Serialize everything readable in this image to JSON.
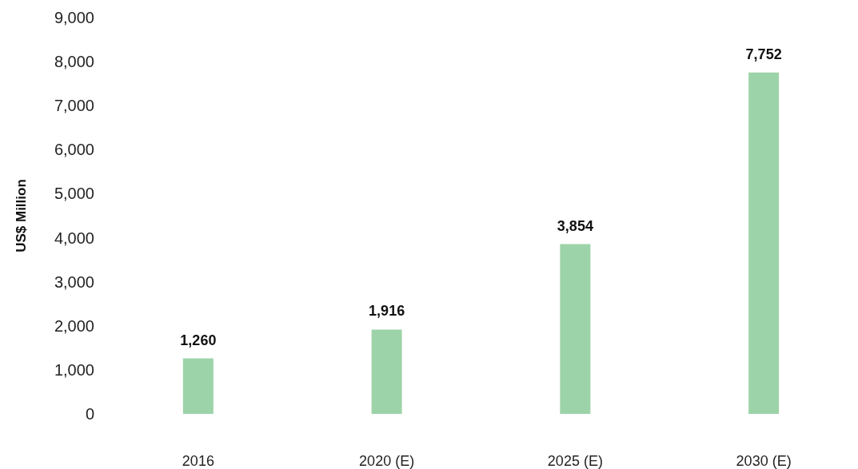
{
  "chart_data": {
    "type": "bar",
    "ylabel": "US$ Million",
    "categories": [
      "2016",
      "2020 (E)",
      "2025 (E)",
      "2030 (E)"
    ],
    "values": [
      1260,
      1916,
      3854,
      7752
    ],
    "value_labels": [
      "1,260",
      "1,916",
      "3,854",
      "7,752"
    ],
    "color": "#9dd3a8",
    "ylim": [
      0,
      9000
    ],
    "yticks": [
      0,
      {
        "value": 1000,
        "label": "1,000"
      },
      {
        "value": 2000,
        "label": "2,000"
      },
      {
        "value": 3000,
        "label": "3,000"
      },
      {
        "value": 4000,
        "label": "4,000"
      },
      {
        "value": 5000,
        "label": "5,000"
      },
      {
        "value": 6000,
        "label": "6,000"
      },
      {
        "value": 7000,
        "label": "7,000"
      },
      {
        "value": 8000,
        "label": "8,000"
      },
      {
        "value": 9000,
        "label": "9,000"
      }
    ],
    "grid": false
  }
}
